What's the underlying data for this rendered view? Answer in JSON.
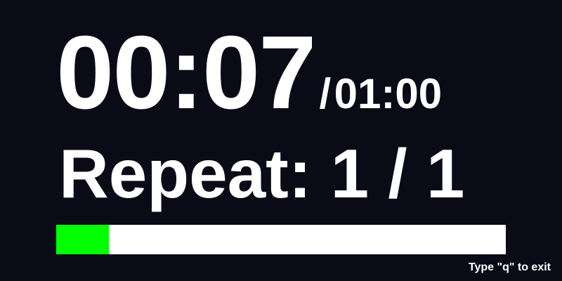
{
  "timer": {
    "elapsed": "00:07",
    "separator": "/",
    "total": "01:00"
  },
  "repeat": {
    "text": "Repeat: 1 / 1"
  },
  "progress": {
    "fraction": 0.117,
    "fill_color": "#00ff00",
    "track_color": "#ffffff"
  },
  "hint": {
    "text": "Type \"q\" to exit"
  },
  "colors": {
    "background": "#0b0b18",
    "text": "#ffffff"
  }
}
